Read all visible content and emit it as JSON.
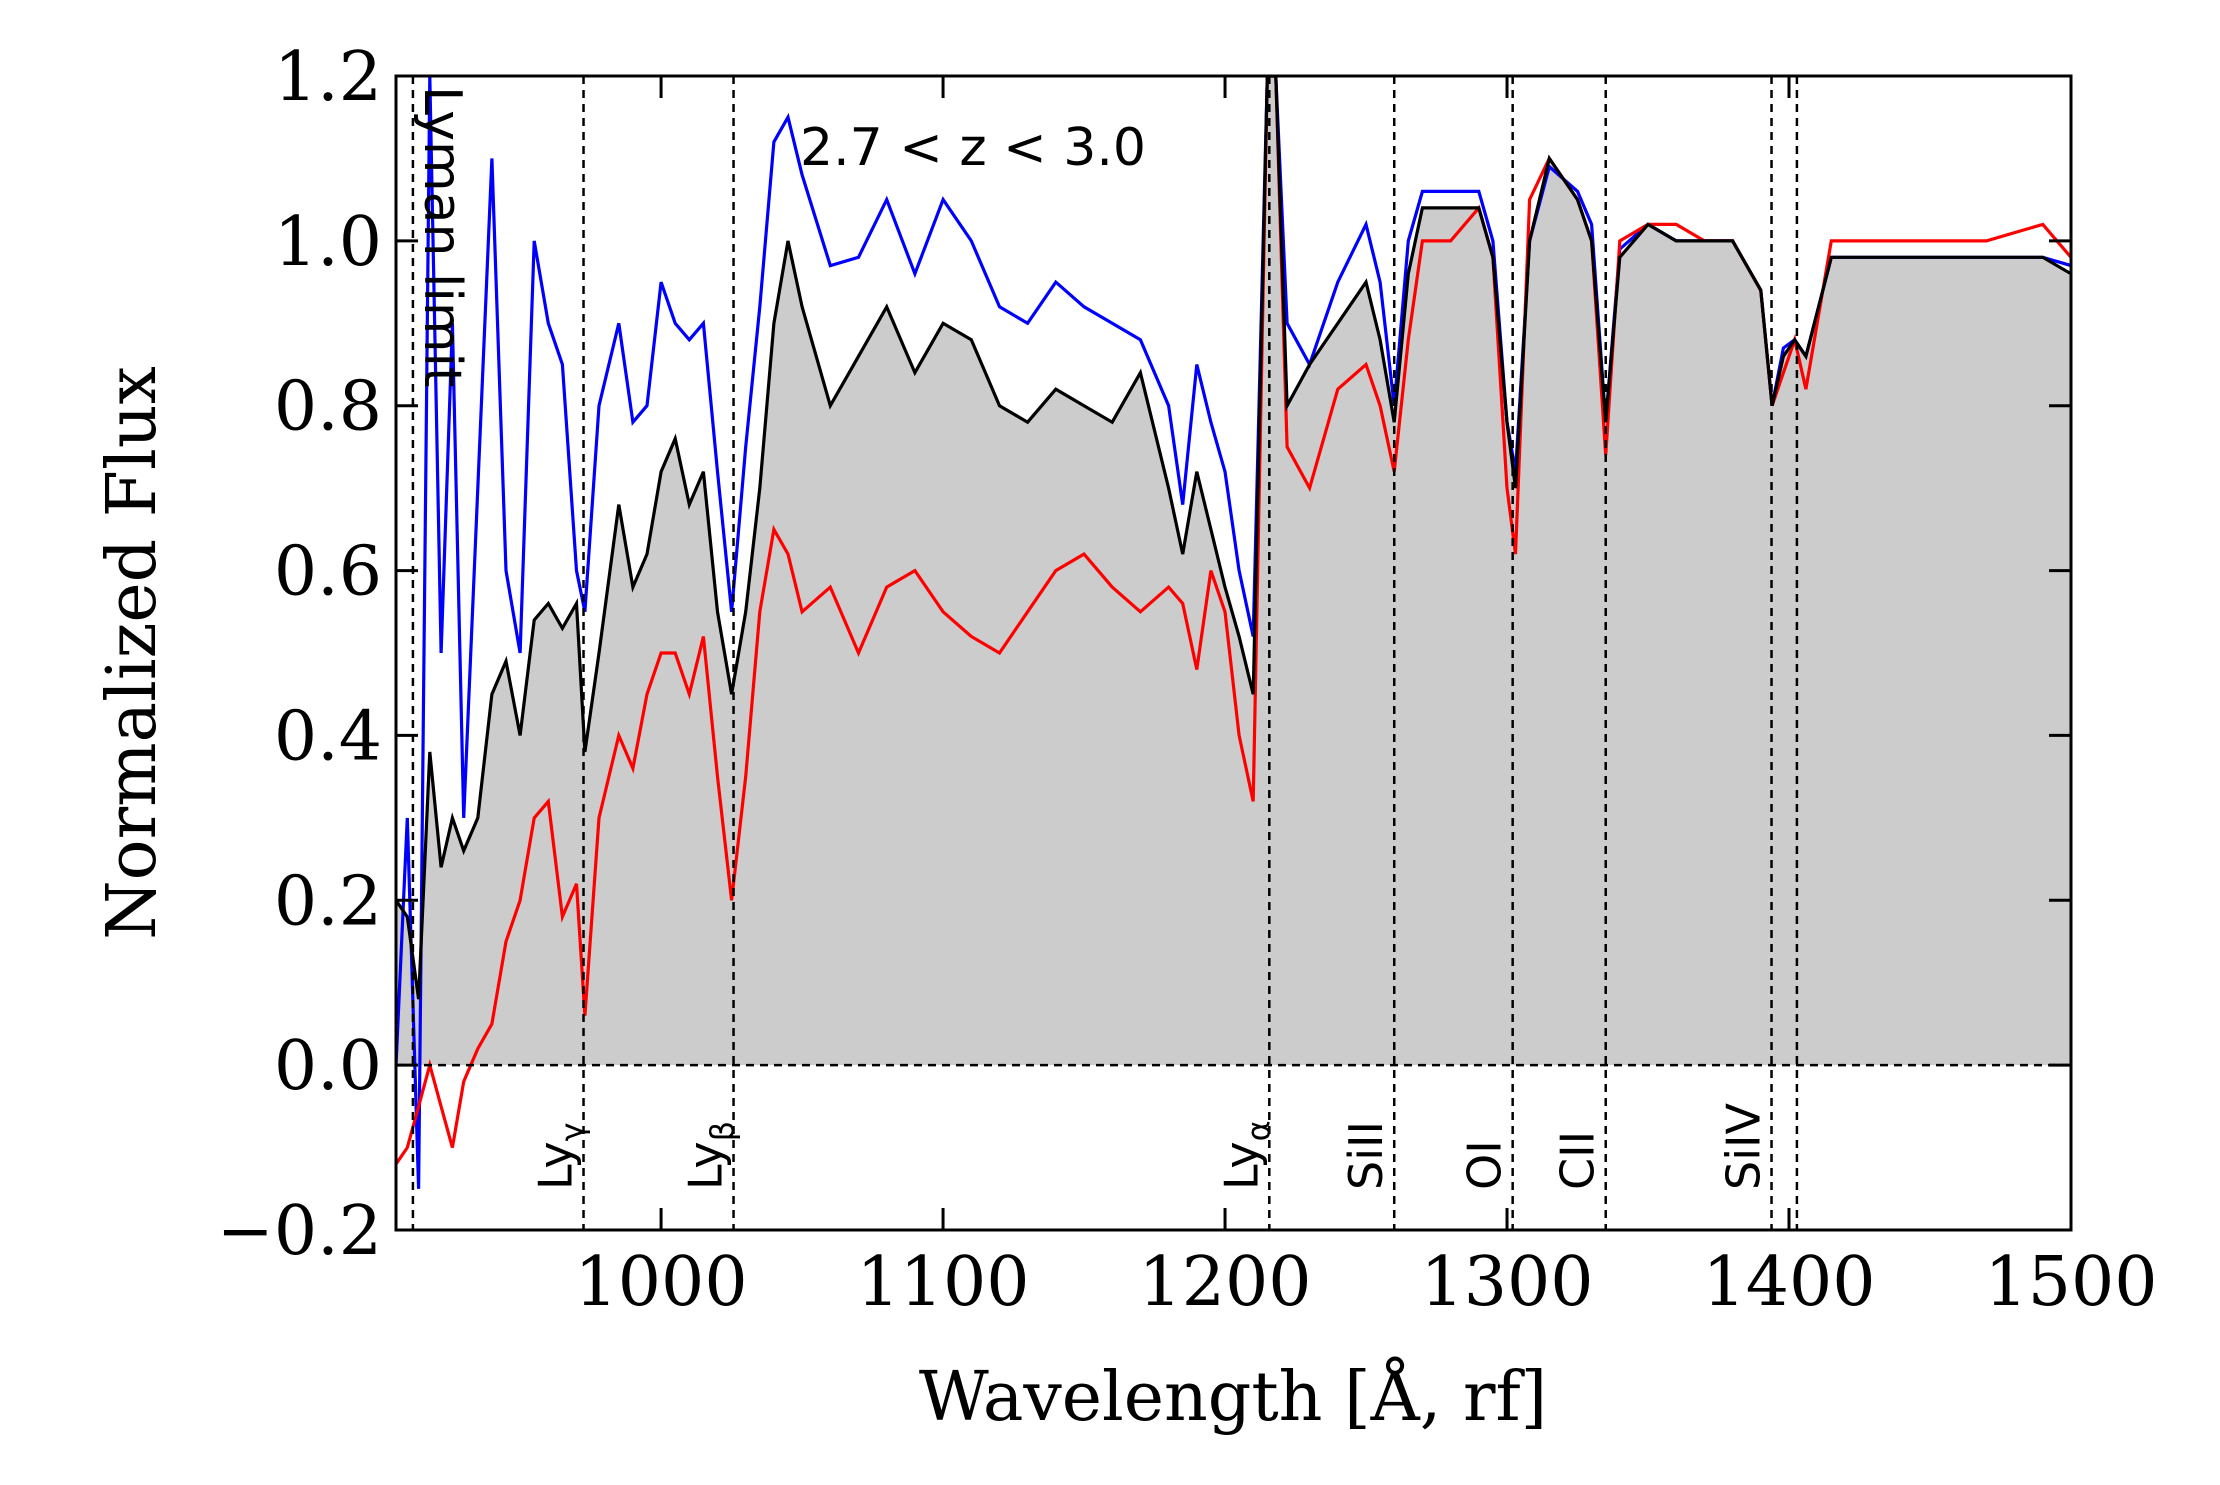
{
  "chart_data": {
    "type": "line",
    "annotation": "2.7 < z < 3.0",
    "xlabel": "Wavelength [Å, rf]",
    "ylabel": "Normalized Flux",
    "xlim": [
      906,
      1500
    ],
    "ylim": [
      -0.2,
      1.2
    ],
    "xticks": [
      1000,
      1100,
      1200,
      1300,
      1400,
      1500
    ],
    "yticks": [
      {
        "value": -0.2,
        "label": "−0.2"
      },
      {
        "value": 0,
        "label": "0.0"
      },
      0.2,
      0.4,
      0.6,
      0.8,
      {
        "value": 1,
        "label": "1.0"
      },
      1.2
    ],
    "hlines": [
      0
    ],
    "vlines": [
      {
        "x": 912,
        "label": "Lyman limit"
      },
      {
        "x": 972.5,
        "label": "Ly",
        "sub": "γ"
      },
      {
        "x": 1025.7,
        "label": "Ly",
        "sub": "β"
      },
      {
        "x": 1215.7,
        "label": "Ly",
        "sub": "α"
      },
      {
        "x": 1260,
        "label": "SiII"
      },
      {
        "x": 1302,
        "label": "OI"
      },
      {
        "x": 1335,
        "label": "CII"
      },
      {
        "x": 1393.8,
        "label": "SiIV"
      },
      {
        "x": 1402.8
      }
    ],
    "x": [
      906,
      910,
      914,
      918,
      922,
      926,
      930,
      935,
      940,
      945,
      950,
      955,
      960,
      965,
      970,
      973,
      978,
      985,
      990,
      995,
      1000,
      1005,
      1010,
      1015,
      1020,
      1025,
      1030,
      1035,
      1040,
      1045,
      1050,
      1060,
      1070,
      1080,
      1090,
      1100,
      1110,
      1120,
      1130,
      1140,
      1150,
      1160,
      1170,
      1180,
      1185,
      1190,
      1195,
      1200,
      1205,
      1210,
      1215,
      1218,
      1222,
      1230,
      1240,
      1250,
      1255,
      1260,
      1265,
      1270,
      1280,
      1290,
      1295,
      1300,
      1303,
      1308,
      1315,
      1325,
      1330,
      1335,
      1340,
      1350,
      1360,
      1370,
      1380,
      1390,
      1394,
      1398,
      1402,
      1406,
      1415,
      1430,
      1450,
      1470,
      1490,
      1500
    ],
    "series": [
      {
        "color": "#0000ff",
        "values": [
          0.0,
          0.3,
          -0.15,
          1.2,
          0.5,
          0.9,
          0.3,
          0.7,
          1.1,
          0.6,
          0.5,
          1.0,
          0.9,
          0.85,
          0.6,
          0.55,
          0.8,
          0.9,
          0.78,
          0.8,
          0.95,
          0.9,
          0.88,
          0.9,
          0.72,
          0.55,
          0.75,
          0.92,
          1.12,
          1.15,
          1.08,
          0.97,
          0.98,
          1.05,
          0.96,
          1.05,
          1.0,
          0.92,
          0.9,
          0.95,
          0.92,
          0.9,
          0.88,
          0.8,
          0.68,
          0.85,
          0.78,
          0.72,
          0.6,
          0.52,
          1.2,
          1.2,
          0.9,
          0.85,
          0.95,
          1.02,
          0.95,
          0.8,
          1.0,
          1.06,
          1.06,
          1.06,
          1.0,
          0.78,
          0.72,
          1.0,
          1.09,
          1.06,
          1.02,
          0.78,
          0.99,
          1.02,
          1.0,
          1.0,
          1.0,
          0.94,
          0.8,
          0.87,
          0.88,
          0.86,
          0.98,
          0.98,
          0.98,
          0.98,
          0.98,
          0.97
        ]
      },
      {
        "color": "#ff0000",
        "values": [
          -0.12,
          -0.1,
          -0.05,
          0.0,
          -0.05,
          -0.1,
          -0.02,
          0.02,
          0.05,
          0.15,
          0.2,
          0.3,
          0.32,
          0.18,
          0.22,
          0.06,
          0.3,
          0.4,
          0.36,
          0.45,
          0.5,
          0.5,
          0.45,
          0.52,
          0.35,
          0.2,
          0.35,
          0.55,
          0.65,
          0.62,
          0.55,
          0.58,
          0.5,
          0.58,
          0.6,
          0.55,
          0.52,
          0.5,
          0.55,
          0.6,
          0.62,
          0.58,
          0.55,
          0.58,
          0.56,
          0.48,
          0.6,
          0.55,
          0.4,
          0.32,
          1.2,
          1.2,
          0.75,
          0.7,
          0.82,
          0.85,
          0.8,
          0.72,
          0.88,
          1.0,
          1.0,
          1.04,
          0.98,
          0.7,
          0.62,
          1.05,
          1.1,
          1.05,
          1.0,
          0.74,
          1.0,
          1.02,
          1.02,
          1.0,
          1.0,
          0.94,
          0.8,
          0.84,
          0.88,
          0.82,
          1.0,
          1.0,
          1.0,
          1.0,
          1.02,
          0.98
        ]
      },
      {
        "color": "#000000",
        "fill": "#cccccc",
        "values": [
          0.2,
          0.18,
          0.08,
          0.38,
          0.24,
          0.3,
          0.26,
          0.3,
          0.45,
          0.49,
          0.4,
          0.54,
          0.56,
          0.53,
          0.56,
          0.38,
          0.5,
          0.68,
          0.58,
          0.62,
          0.72,
          0.76,
          0.68,
          0.72,
          0.55,
          0.45,
          0.55,
          0.7,
          0.9,
          1.0,
          0.92,
          0.8,
          0.86,
          0.92,
          0.84,
          0.9,
          0.88,
          0.8,
          0.78,
          0.82,
          0.8,
          0.78,
          0.84,
          0.7,
          0.62,
          0.72,
          0.65,
          0.58,
          0.52,
          0.45,
          1.2,
          1.2,
          0.8,
          0.85,
          0.9,
          0.95,
          0.88,
          0.78,
          0.96,
          1.04,
          1.04,
          1.04,
          0.98,
          0.78,
          0.7,
          1.0,
          1.1,
          1.05,
          1.0,
          0.78,
          0.98,
          1.02,
          1.0,
          1.0,
          1.0,
          0.94,
          0.8,
          0.86,
          0.88,
          0.86,
          0.98,
          0.98,
          0.98,
          0.98,
          0.98,
          0.96
        ]
      }
    ]
  }
}
